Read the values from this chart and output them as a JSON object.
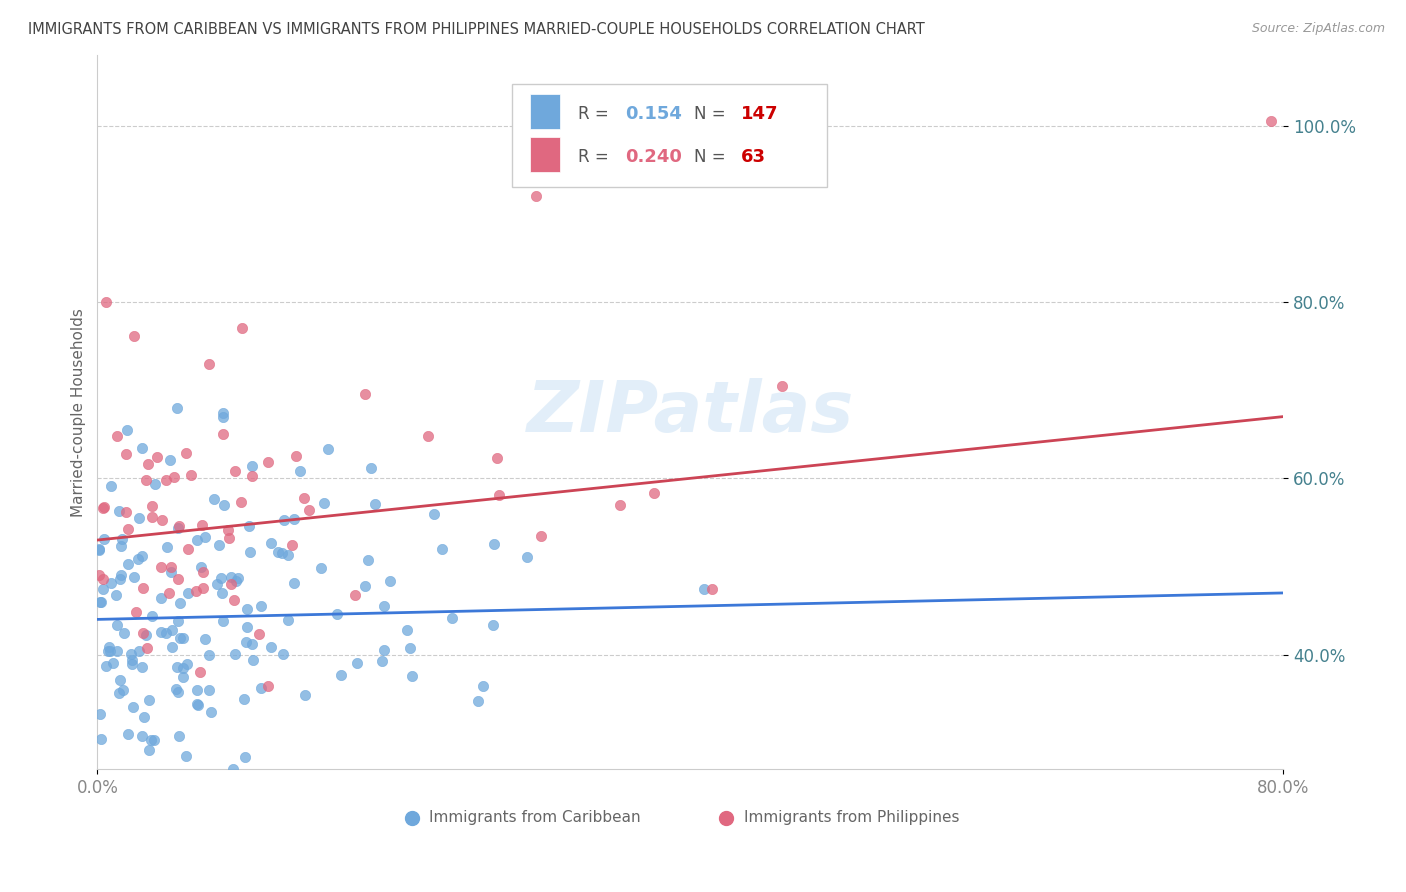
{
  "title": "IMMIGRANTS FROM CARIBBEAN VS IMMIGRANTS FROM PHILIPPINES MARRIED-COUPLE HOUSEHOLDS CORRELATION CHART",
  "source": "Source: ZipAtlas.com",
  "ylabel": "Married-couple Households",
  "y_ticks": [
    0.4,
    0.6,
    0.8,
    1.0
  ],
  "y_tick_labels": [
    "40.0%",
    "60.0%",
    "80.0%",
    "100.0%"
  ],
  "xmin": 0.0,
  "xmax": 0.8,
  "ymin": 0.27,
  "ymax": 1.08,
  "series1_label": "Immigrants from Caribbean",
  "series2_label": "Immigrants from Philippines",
  "series1_color": "#6fa8dc",
  "series2_color": "#e06880",
  "series1_line_color": "#3c78d8",
  "series2_line_color": "#cc4455",
  "series1_R": 0.154,
  "series1_N": 147,
  "series2_R": 0.24,
  "series2_N": 63,
  "legend_R_color1": "#6fa8dc",
  "legend_R_color2": "#e06880",
  "legend_N_color": "#cc0000",
  "watermark": "ZIPatlas",
  "background_color": "#ffffff",
  "tick_color": "#45818e",
  "title_color": "#434343",
  "source_color": "#999999",
  "ylabel_color": "#666666",
  "grid_color": "#cccccc",
  "spine_color": "#cccccc"
}
